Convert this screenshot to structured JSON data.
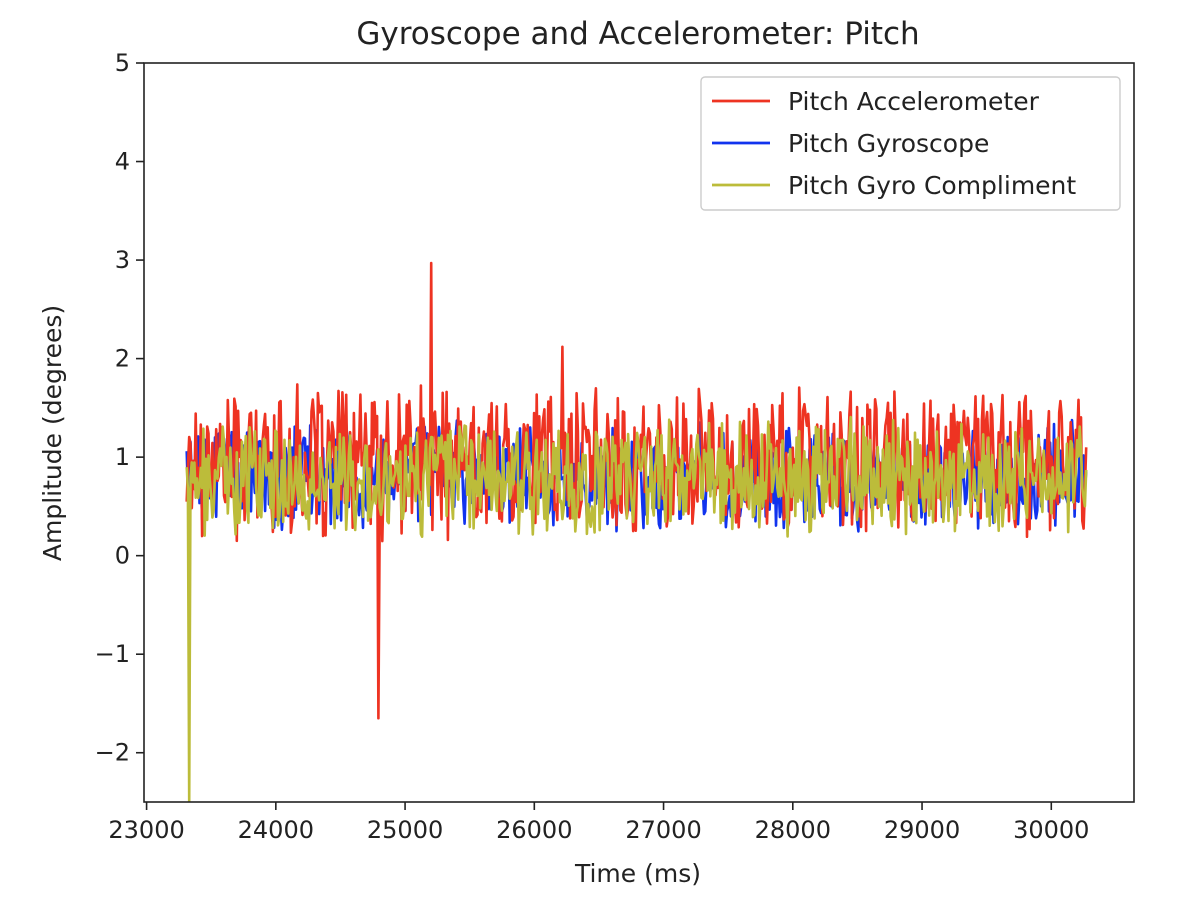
{
  "chart_data": {
    "type": "line",
    "title": "Gyroscope and Accelerometer: Pitch",
    "xlabel": "Time (ms)",
    "ylabel": "Amplitude (degrees)",
    "xlim": [
      22980,
      30640
    ],
    "ylim": [
      -2.5,
      5
    ],
    "xticks": [
      23000,
      24000,
      25000,
      26000,
      27000,
      28000,
      29000,
      30000
    ],
    "xtick_labels": [
      "23000",
      "24000",
      "25000",
      "26000",
      "27000",
      "28000",
      "29000",
      "30000"
    ],
    "yticks": [
      -2,
      -1,
      0,
      1,
      2,
      3,
      4,
      5
    ],
    "ytick_labels": [
      "−2",
      "−1",
      "0",
      "1",
      "2",
      "3",
      "4",
      "5"
    ],
    "grid": false,
    "legend_position": "top-right",
    "series": [
      {
        "name": "Pitch Accelerometer",
        "color": "#ee3322",
        "x_start": 23310,
        "x_end": 30270,
        "noise_center": 0.95,
        "noise_amplitude": 0.85,
        "spikes": [
          [
            24790,
            -1.65
          ],
          [
            25200,
            2.97
          ],
          [
            26220,
            2.12
          ]
        ]
      },
      {
        "name": "Pitch Gyroscope",
        "color": "#1133ee",
        "x_start": 23310,
        "x_end": 30270,
        "noise_center": 0.8,
        "noise_amplitude": 0.6,
        "spikes": []
      },
      {
        "name": "Pitch Gyro Compliment",
        "color": "#bcbc3a",
        "x_start": 23310,
        "x_end": 30270,
        "noise_center": 0.8,
        "noise_amplitude": 0.65,
        "spikes": [
          [
            23330,
            -2.5
          ]
        ]
      }
    ]
  }
}
